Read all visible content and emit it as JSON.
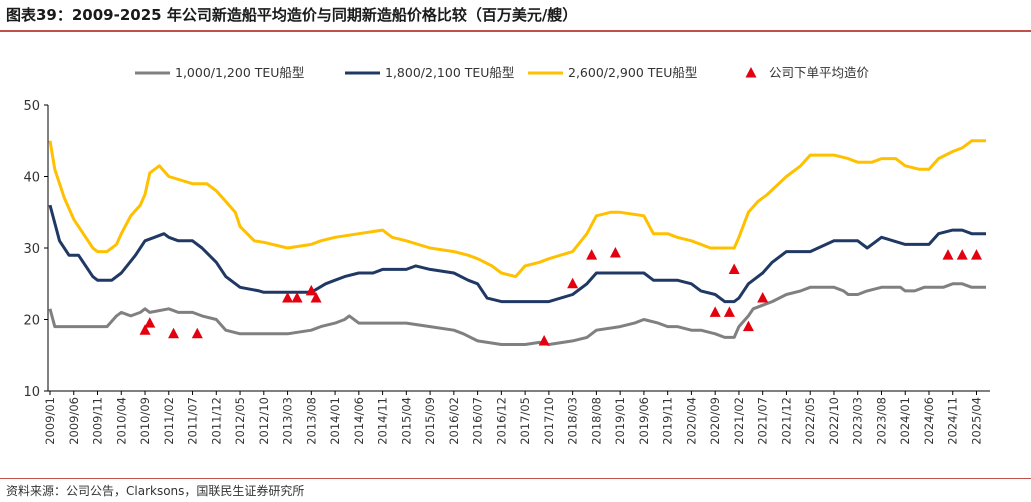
{
  "title": "图表39：2009-2025 年公司新造船平均造价与同期新造船价格比较（百万美元/艘）",
  "source": "资料来源：公司公告，Clarksons，国联民生证券研究所",
  "chart_data": {
    "type": "line",
    "title": "",
    "xlabel": "",
    "ylabel": "",
    "ylim": [
      10,
      50
    ],
    "yticks": [
      10,
      20,
      30,
      40,
      50
    ],
    "grid": false,
    "legend_position": "top",
    "x_tick_labels": [
      "2009/01",
      "2009/06",
      "2009/11",
      "2010/04",
      "2010/09",
      "2011/02",
      "2011/07",
      "2011/12",
      "2012/05",
      "2012/10",
      "2013/03",
      "2013/08",
      "2014/01",
      "2014/06",
      "2014/11",
      "2015/04",
      "2015/09",
      "2016/02",
      "2016/07",
      "2016/12",
      "2017/05",
      "2017/10",
      "2018/03",
      "2018/08",
      "2019/01",
      "2019/06",
      "2019/11",
      "2020/04",
      "2020/09",
      "2021/02",
      "2021/07",
      "2021/12",
      "2022/05",
      "2022/10",
      "2023/03",
      "2023/08",
      "2024/01",
      "2024/06",
      "2024/11",
      "2025/04"
    ],
    "series": [
      {
        "name": "1,000/1,200 TEU船型",
        "color": "#808080",
        "style": "line",
        "x": [
          "2009/01",
          "2009/02",
          "2009/06",
          "2009/11",
          "2010/01",
          "2010/03",
          "2010/04",
          "2010/06",
          "2010/08",
          "2010/09",
          "2010/10",
          "2011/02",
          "2011/04",
          "2011/07",
          "2011/09",
          "2011/12",
          "2012/02",
          "2012/05",
          "2012/10",
          "2013/03",
          "2013/08",
          "2013/10",
          "2014/01",
          "2014/03",
          "2014/04",
          "2014/06",
          "2015/01",
          "2015/04",
          "2015/09",
          "2016/02",
          "2016/04",
          "2016/07",
          "2016/12",
          "2017/05",
          "2017/08",
          "2017/10",
          "2018/03",
          "2018/06",
          "2018/08",
          "2019/01",
          "2019/04",
          "2019/06",
          "2019/09",
          "2019/11",
          "2020/01",
          "2020/04",
          "2020/06",
          "2020/09",
          "2020/11",
          "2021/01",
          "2021/02",
          "2021/04",
          "2021/05",
          "2021/07",
          "2021/09",
          "2021/12",
          "2022/03",
          "2022/05",
          "2022/08",
          "2022/10",
          "2022/12",
          "2023/01",
          "2023/03",
          "2023/05",
          "2023/08",
          "2023/12",
          "2024/01",
          "2024/03",
          "2024/05",
          "2024/06",
          "2024/09",
          "2024/11",
          "2025/01",
          "2025/03",
          "2025/06"
        ],
        "y": [
          21.5,
          19.0,
          19.0,
          19.0,
          19.0,
          20.5,
          21.0,
          20.5,
          21.0,
          21.5,
          21.0,
          21.5,
          21.0,
          21.0,
          20.5,
          20.0,
          18.5,
          18.0,
          18.0,
          18.0,
          18.5,
          19.0,
          19.5,
          20.0,
          20.5,
          19.5,
          19.5,
          19.5,
          19.0,
          18.5,
          18.0,
          17.0,
          16.5,
          16.5,
          16.8,
          16.5,
          17.0,
          17.5,
          18.5,
          19.0,
          19.5,
          20.0,
          19.5,
          19.0,
          19.0,
          18.5,
          18.5,
          18.0,
          17.5,
          17.5,
          19.0,
          20.5,
          21.5,
          22.0,
          22.5,
          23.5,
          24.0,
          24.5,
          24.5,
          24.5,
          24.0,
          23.5,
          23.5,
          24.0,
          24.5,
          24.5,
          24.0,
          24.0,
          24.5,
          24.5,
          24.5,
          25.0,
          25.0,
          24.5,
          24.5
        ]
      },
      {
        "name": "1,800/2,100 TEU船型",
        "color": "#1f3864",
        "style": "line",
        "x": [
          "2009/01",
          "2009/03",
          "2009/05",
          "2009/07",
          "2009/10",
          "2009/11",
          "2010/02",
          "2010/04",
          "2010/07",
          "2010/09",
          "2010/11",
          "2011/01",
          "2011/02",
          "2011/04",
          "2011/07",
          "2011/09",
          "2011/12",
          "2012/02",
          "2012/05",
          "2012/09",
          "2012/10",
          "2013/03",
          "2013/08",
          "2013/11",
          "2014/01",
          "2014/03",
          "2014/06",
          "2014/09",
          "2014/11",
          "2015/04",
          "2015/06",
          "2015/09",
          "2016/02",
          "2016/05",
          "2016/07",
          "2016/09",
          "2016/12",
          "2017/05",
          "2017/10",
          "2018/03",
          "2018/06",
          "2018/08",
          "2019/01",
          "2019/06",
          "2019/08",
          "2019/11",
          "2020/01",
          "2020/04",
          "2020/06",
          "2020/09",
          "2020/11",
          "2021/01",
          "2021/02",
          "2021/04",
          "2021/07",
          "2021/09",
          "2021/12",
          "2022/03",
          "2022/05",
          "2022/10",
          "2022/12",
          "2023/03",
          "2023/05",
          "2023/06",
          "2023/08",
          "2024/01",
          "2024/06",
          "2024/08",
          "2024/11",
          "2025/01",
          "2025/03",
          "2025/06"
        ],
        "y": [
          36.0,
          31.0,
          29.0,
          29.0,
          26.0,
          25.5,
          25.5,
          26.5,
          29.0,
          31.0,
          31.5,
          32.0,
          31.5,
          31.0,
          31.0,
          30.0,
          28.0,
          26.0,
          24.5,
          24.0,
          23.8,
          23.8,
          23.8,
          25.0,
          25.5,
          26.0,
          26.5,
          26.5,
          27.0,
          27.0,
          27.5,
          27.0,
          26.5,
          25.5,
          25.0,
          23.0,
          22.5,
          22.5,
          22.5,
          23.5,
          25.0,
          26.5,
          26.5,
          26.5,
          25.5,
          25.5,
          25.5,
          25.0,
          24.0,
          23.5,
          22.5,
          22.5,
          23.0,
          25.0,
          26.5,
          28.0,
          29.5,
          29.5,
          29.5,
          31.0,
          31.0,
          31.0,
          30.0,
          30.5,
          31.5,
          30.5,
          30.5,
          32.0,
          32.5,
          32.5,
          32.0,
          32.0
        ]
      },
      {
        "name": "2,600/2,900 TEU船型",
        "color": "#ffc000",
        "style": "line",
        "x": [
          "2009/01",
          "2009/02",
          "2009/04",
          "2009/06",
          "2009/08",
          "2009/10",
          "2009/11",
          "2010/01",
          "2010/03",
          "2010/04",
          "2010/06",
          "2010/08",
          "2010/09",
          "2010/10",
          "2010/12",
          "2011/02",
          "2011/07",
          "2011/10",
          "2011/12",
          "2012/02",
          "2012/04",
          "2012/05",
          "2012/08",
          "2012/10",
          "2013/03",
          "2013/08",
          "2013/10",
          "2014/01",
          "2014/06",
          "2014/11",
          "2015/01",
          "2015/04",
          "2015/09",
          "2016/02",
          "2016/05",
          "2016/07",
          "2016/10",
          "2016/12",
          "2017/03",
          "2017/05",
          "2017/08",
          "2017/10",
          "2018/03",
          "2018/06",
          "2018/08",
          "2018/11",
          "2019/01",
          "2019/06",
          "2019/08",
          "2019/11",
          "2020/01",
          "2020/04",
          "2020/06",
          "2020/08",
          "2020/11",
          "2021/01",
          "2021/02",
          "2021/04",
          "2021/06",
          "2021/08",
          "2021/12",
          "2022/03",
          "2022/05",
          "2022/10",
          "2023/01",
          "2023/03",
          "2023/06",
          "2023/08",
          "2023/11",
          "2024/01",
          "2024/04",
          "2024/06",
          "2024/08",
          "2024/11",
          "2025/01",
          "2025/03",
          "2025/06"
        ],
        "y": [
          45.0,
          41.0,
          37.0,
          34.0,
          32.0,
          30.0,
          29.5,
          29.5,
          30.5,
          32.0,
          34.5,
          36.0,
          37.5,
          40.5,
          41.5,
          40.0,
          39.0,
          39.0,
          38.0,
          36.5,
          35.0,
          33.0,
          31.0,
          30.8,
          30.0,
          30.5,
          31.0,
          31.5,
          32.0,
          32.5,
          31.5,
          31.0,
          30.0,
          29.5,
          29.0,
          28.5,
          27.5,
          26.5,
          26.0,
          27.5,
          28.0,
          28.5,
          29.5,
          32.0,
          34.5,
          35.0,
          35.0,
          34.5,
          32.0,
          32.0,
          31.5,
          31.0,
          30.5,
          30.0,
          30.0,
          30.0,
          31.5,
          35.0,
          36.5,
          37.5,
          40.0,
          41.5,
          43.0,
          43.0,
          42.5,
          42.0,
          42.0,
          42.5,
          42.5,
          41.5,
          41.0,
          41.0,
          42.5,
          43.5,
          44.0,
          45.0,
          45.0
        ]
      },
      {
        "name": "公司下单平均造价",
        "color": "#e3000f",
        "style": "triangle",
        "x": [
          "2010/09",
          "2010/10",
          "2011/03",
          "2011/08",
          "2013/03",
          "2013/05",
          "2013/08",
          "2013/09",
          "2017/09",
          "2018/03",
          "2018/07",
          "2018/12",
          "2020/09",
          "2020/12",
          "2021/01",
          "2021/04",
          "2021/07",
          "2024/10",
          "2025/01",
          "2025/04"
        ],
        "y": [
          18.5,
          19.5,
          18.0,
          18.0,
          23.0,
          23.0,
          24.0,
          23.0,
          17.0,
          25.0,
          29.0,
          29.3,
          21.0,
          21.0,
          27.0,
          19.0,
          23.0,
          29.0,
          29.0,
          29.0
        ]
      }
    ]
  }
}
